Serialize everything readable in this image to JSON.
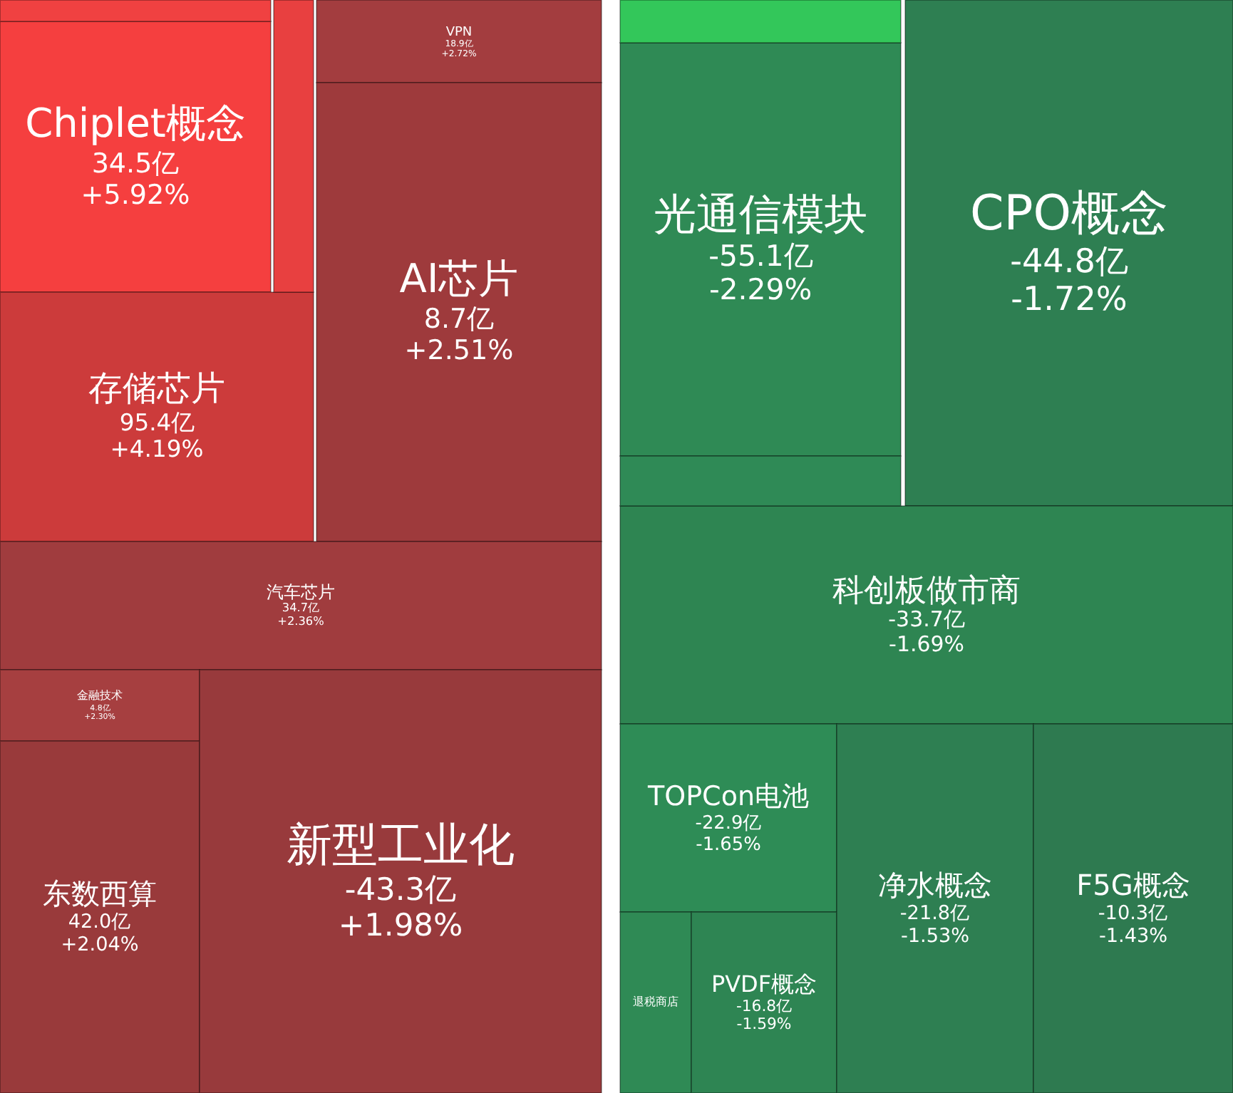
{
  "chart_data": {
    "type": "other",
    "categories": [
      null,
      "Chiplet概念",
      null,
      "VPN",
      "AI芯片",
      "存储芯片",
      "汽车芯片",
      "金融技术",
      "东数西算",
      "新型工业化",
      null,
      "光通信模块",
      null,
      "CPO概念",
      "科创板做市商",
      "TOPCon电池",
      "退税商店",
      "PVDF概念",
      "净水概念",
      "F5G概念"
    ],
    "series": [
      {
        "colors": [
          "#f04141",
          "#f53f3f",
          "#e84040",
          "#a33d3f",
          "#9e3a3c",
          "#cc3b3b",
          "#a03c3e",
          "#a63f40",
          "#993a3b",
          "#983a3c",
          "#33c75a",
          "#2f8a55",
          "#2f8a56",
          "#2e7f52",
          "#2e8552",
          "#2e8c56",
          "#2f8a55",
          "#2e8553",
          "#2e7f52",
          "#2e7a50"
        ],
        "values": [
          null,
          34.5,
          null,
          18.9,
          8.7,
          95.4,
          34.7,
          4.8,
          42.0,
          -43.3,
          null,
          -55.1,
          null,
          -44.8,
          -33.7,
          -22.9,
          null,
          -16.8,
          -21.8,
          -10.3
        ],
        "value_labels": [
          null,
          "34.5亿",
          null,
          "18.9亿",
          "8.7亿",
          "95.4亿",
          "34.7亿",
          "4.8亿",
          "42.0亿",
          "-43.3亿",
          null,
          "-55.1亿",
          null,
          "-44.8亿",
          "-33.7亿",
          "-22.9亿",
          null,
          "-16.8亿",
          "-21.8亿",
          "-10.3亿"
        ]
      },
      {
        "values": [
          null,
          5.92,
          null,
          2.72,
          2.51,
          4.19,
          2.36,
          2.3,
          2.04,
          1.98,
          null,
          -2.29,
          null,
          -1.72,
          -1.69,
          -1.65,
          null,
          -1.59,
          -1.53,
          -1.43
        ],
        "value_labels": [
          null,
          "+5.92%",
          null,
          "+2.72%",
          "+2.51%",
          "+4.19%",
          "+2.36%",
          "+2.30%",
          "+2.04%",
          "+1.98%",
          null,
          "-2.29%",
          null,
          "-1.72%",
          "-1.69%",
          "-1.65%",
          null,
          "-1.59%",
          "-1.53%",
          "-1.43%"
        ]
      }
    ]
  }
}
